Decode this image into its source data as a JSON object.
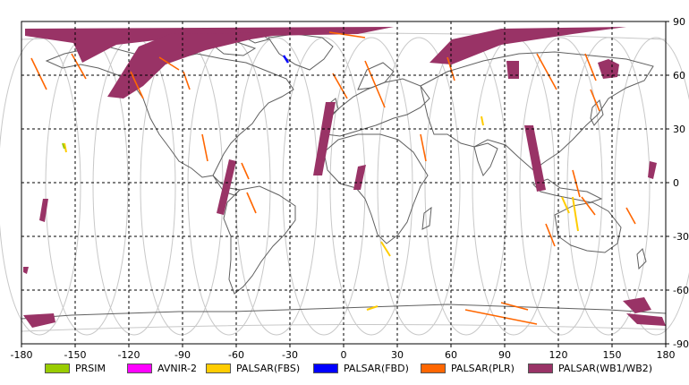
{
  "map": {
    "lon_range": [
      -180,
      180
    ],
    "lat_range": [
      -90,
      90
    ],
    "x_ticks": [
      "-180",
      "-150",
      "-120",
      "-90",
      "-60",
      "-30",
      "0",
      "30",
      "60",
      "90",
      "120",
      "150",
      "180"
    ],
    "y_ticks": [
      "90",
      "60",
      "30",
      "0",
      "-30",
      "-60",
      "-90"
    ],
    "grid": true,
    "colors": {
      "coastline": "#606060",
      "orbit_track": "#c8c8c8",
      "grid": "#000000"
    }
  },
  "legend": {
    "placement": "bottom",
    "items": [
      {
        "label": "PRSIM",
        "color": "#99cc00"
      },
      {
        "label": "AVNIR-2",
        "color": "#ff00ff"
      },
      {
        "label": "PALSAR(FBS)",
        "color": "#ffcc00"
      },
      {
        "label": "PALSAR(FBD)",
        "color": "#0000ff"
      },
      {
        "label": "PALSAR(PLR)",
        "color": "#ff6600"
      },
      {
        "label": "PALSAR(WB1/WB2)",
        "color": "#993366"
      }
    ]
  }
}
